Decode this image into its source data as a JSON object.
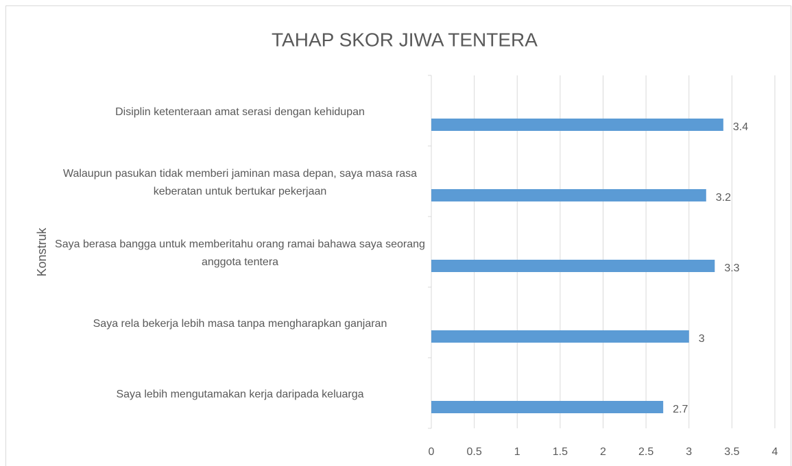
{
  "chart_data": {
    "type": "bar",
    "orientation": "horizontal",
    "title": "TAHAP SKOR JIWA TENTERA",
    "y_label": "Konstruk",
    "categories": [
      "Disiplin ketenteraan amat serasi dengan kehidupan",
      "Walaupun pasukan tidak memberi jaminan masa depan, saya masa rasa keberatan untuk bertukar pekerjaan",
      "Saya berasa bangga untuk memberitahu orang ramai bahawa saya seorang anggota tentera",
      "Saya rela bekerja lebih masa tanpa mengharapkan ganjaran",
      "Saya lebih mengutamakan kerja daripada keluarga"
    ],
    "values": [
      3.4,
      3.2,
      3.3,
      3,
      2.7
    ],
    "color": "#5b9bd5",
    "xlim": [
      0,
      4
    ],
    "xticks": [
      0,
      0.5,
      1,
      1.5,
      2,
      2.5,
      3,
      3.5,
      4
    ],
    "grid": true
  }
}
